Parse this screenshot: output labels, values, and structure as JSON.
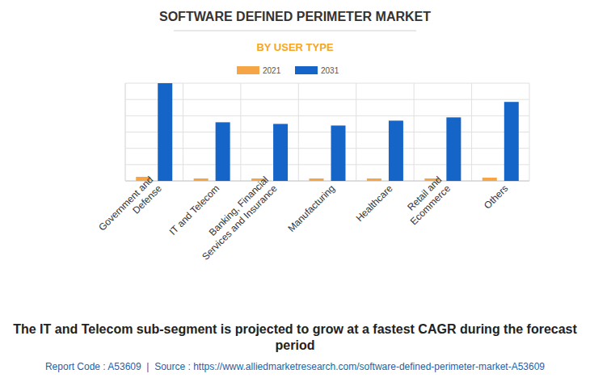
{
  "chart_data": {
    "type": "bar",
    "title": "SOFTWARE DEFINED PERIMETER MARKET",
    "subtitle": "BY USER TYPE",
    "categories": [
      "Government and Defense",
      "IT and Telecom",
      "Banking, Financial Services and Insurance",
      "Manufacturing",
      "Healthcare",
      "Retail and Ecommerce",
      "Others"
    ],
    "series": [
      {
        "name": "2021",
        "color": "#f5a546",
        "values": [
          0.25,
          0.15,
          0.15,
          0.15,
          0.15,
          0.15,
          0.2
        ]
      },
      {
        "name": "2031",
        "color": "#1565c8",
        "values": [
          6.0,
          3.6,
          3.5,
          3.4,
          3.7,
          3.9,
          4.85
        ]
      }
    ],
    "ylim": [
      0,
      6
    ],
    "yticks": [
      0,
      1,
      2,
      3,
      4,
      5,
      6
    ],
    "grid": true,
    "tick_labels": "x",
    "legend": "top",
    "caption": "The IT and Telecom sub-segment is projected to grow at a fastest CAGR during the forecast period",
    "source": "Report Code : A53609  |  Source : https://www.alliedmarketresearch.com/software-defined-perimeter-market-A53609"
  }
}
